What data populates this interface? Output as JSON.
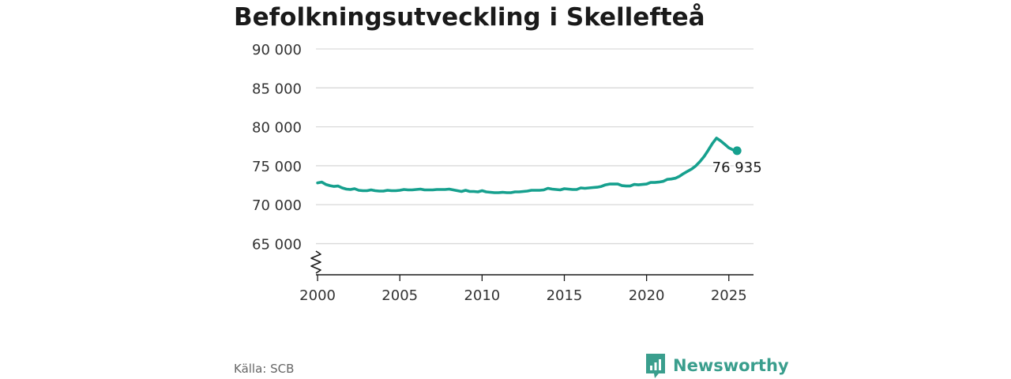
{
  "title": "Befolkningsutveckling i Skellefteå",
  "source": "Källa: SCB",
  "brand": {
    "name": "Newsworthy",
    "color": "#3a9e8d"
  },
  "chart_data": {
    "type": "line",
    "title": "Befolkningsutveckling i Skellefteå",
    "xlabel": "",
    "ylabel": "",
    "xlim": [
      1999.9,
      2026.5
    ],
    "ylim": [
      61000,
      90000
    ],
    "axis_break": true,
    "grid": true,
    "line_color": "#16a08e",
    "x_ticks": [
      2000,
      2005,
      2010,
      2015,
      2020,
      2025
    ],
    "x_tick_labels": [
      "2000",
      "2005",
      "2010",
      "2015",
      "2020",
      "2025"
    ],
    "y_ticks": [
      65000,
      70000,
      75000,
      80000,
      85000,
      90000
    ],
    "y_tick_labels": [
      "65 000",
      "70 000",
      "75 000",
      "80 000",
      "85 000",
      "90 000"
    ],
    "series": [
      {
        "x": [
          2000.0,
          2000.25,
          2000.5,
          2000.75,
          2001.0,
          2001.25,
          2001.5,
          2001.75,
          2002.0,
          2002.25,
          2002.5,
          2002.75,
          2003.0,
          2003.25,
          2003.5,
          2003.75,
          2004.0,
          2004.25,
          2004.5,
          2004.75,
          2005.0,
          2005.25,
          2005.5,
          2005.75,
          2006.0,
          2006.25,
          2006.5,
          2006.75,
          2007.0,
          2007.25,
          2007.5,
          2007.75,
          2008.0,
          2008.25,
          2008.5,
          2008.75,
          2009.0,
          2009.25,
          2009.5,
          2009.75,
          2010.0,
          2010.25,
          2010.5,
          2010.75,
          2011.0,
          2011.25,
          2011.5,
          2011.75,
          2012.0,
          2012.25,
          2012.5,
          2012.75,
          2013.0,
          2013.25,
          2013.5,
          2013.75,
          2014.0,
          2014.25,
          2014.5,
          2014.75,
          2015.0,
          2015.25,
          2015.5,
          2015.75,
          2016.0,
          2016.25,
          2016.5,
          2016.75,
          2017.0,
          2017.25,
          2017.5,
          2017.75,
          2018.0,
          2018.25,
          2018.5,
          2018.75,
          2019.0,
          2019.25,
          2019.5,
          2019.75,
          2020.0,
          2020.25,
          2020.5,
          2020.75,
          2021.0,
          2021.25,
          2021.5,
          2021.75,
          2022.0,
          2022.25,
          2022.5,
          2022.75,
          2023.0,
          2023.25,
          2023.5,
          2023.75,
          2024.0,
          2024.25,
          2024.5,
          2024.75,
          2025.0,
          2025.25,
          2025.5
        ],
        "y": [
          72800,
          72900,
          72600,
          72450,
          72350,
          72400,
          72150,
          72000,
          71950,
          72050,
          71850,
          71800,
          71800,
          71900,
          71800,
          71750,
          71750,
          71850,
          71800,
          71800,
          71850,
          71950,
          71900,
          71900,
          71950,
          72000,
          71900,
          71900,
          71900,
          71950,
          71950,
          71950,
          72000,
          71900,
          71800,
          71700,
          71850,
          71700,
          71700,
          71650,
          71800,
          71650,
          71600,
          71550,
          71550,
          71600,
          71550,
          71550,
          71650,
          71650,
          71700,
          71750,
          71850,
          71850,
          71850,
          71900,
          72100,
          72000,
          71950,
          71900,
          72050,
          72000,
          71950,
          71950,
          72150,
          72100,
          72150,
          72200,
          72250,
          72350,
          72550,
          72650,
          72650,
          72650,
          72450,
          72400,
          72400,
          72600,
          72550,
          72600,
          72650,
          72850,
          72850,
          72900,
          73000,
          73250,
          73300,
          73400,
          73650,
          74000,
          74300,
          74600,
          75000,
          75550,
          76200,
          77000,
          77850,
          78550,
          78200,
          77750,
          77300,
          77050,
          76935
        ]
      }
    ],
    "annotations": [
      {
        "text": "76 935",
        "x": 2025.5,
        "y": 76935
      }
    ]
  }
}
